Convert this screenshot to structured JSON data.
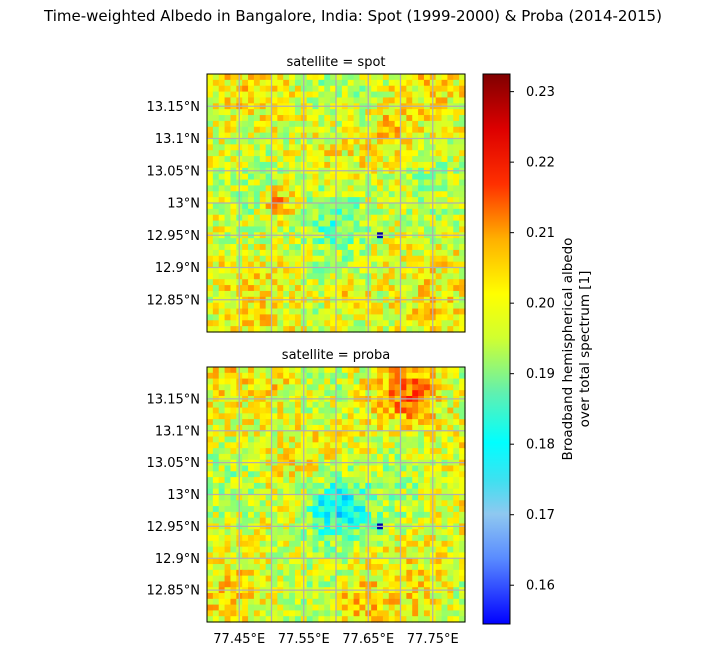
{
  "title": "Time-weighted Albedo in Bangalore, India: Spot (1999-2000) & Proba (2014-2015)",
  "chart_data": {
    "type": "heatmap",
    "title": "Time-weighted Albedo in Bangalore, India: Spot (1999-2000) & Proba (2014-2015)",
    "panels": [
      {
        "label": "satellite = spot"
      },
      {
        "label": "satellite = proba"
      }
    ],
    "xlim": [
      77.4,
      77.8
    ],
    "ylim": [
      12.8,
      13.2
    ],
    "x_ticks": [
      {
        "value": 77.45,
        "label": "77.45°E"
      },
      {
        "value": 77.55,
        "label": "77.55°E"
      },
      {
        "value": 77.65,
        "label": "77.65°E"
      },
      {
        "value": 77.75,
        "label": "77.75°E"
      }
    ],
    "y_ticks": [
      {
        "value": 12.85,
        "label": "12.85°N"
      },
      {
        "value": 12.9,
        "label": "12.9°N"
      },
      {
        "value": 12.95,
        "label": "12.95°N"
      },
      {
        "value": 13.0,
        "label": "13°N"
      },
      {
        "value": 13.05,
        "label": "13.05°N"
      },
      {
        "value": 13.1,
        "label": "13.1°N"
      },
      {
        "value": 13.15,
        "label": "13.15°N"
      }
    ],
    "grid": true,
    "colorbar": {
      "label_line1": "Broadband hemispherical albedo",
      "label_line2": "over total spectrum [1]",
      "range": [
        0.1545,
        0.2325
      ],
      "colormap": "jet",
      "ticks": [
        {
          "value": 0.16,
          "label": "0.16"
        },
        {
          "value": 0.17,
          "label": "0.17"
        },
        {
          "value": 0.18,
          "label": "0.18"
        },
        {
          "value": 0.19,
          "label": "0.19"
        },
        {
          "value": 0.2,
          "label": "0.20"
        },
        {
          "value": 0.21,
          "label": "0.21"
        },
        {
          "value": 0.22,
          "label": "0.22"
        },
        {
          "value": 0.23,
          "label": "0.23"
        }
      ]
    }
  }
}
